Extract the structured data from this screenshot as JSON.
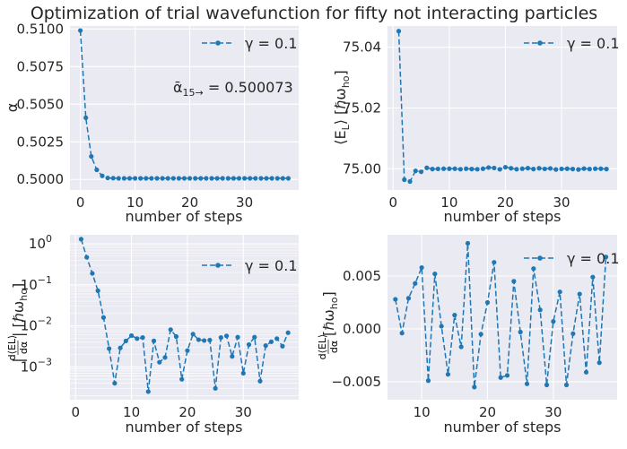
{
  "figure": {
    "title": "Optimization of trial wavefunction for fifty not interacting particles"
  },
  "colors": {
    "axes_bg": "#eaeaf2",
    "grid": "#ffffff",
    "line": "#1f77b4",
    "text": "#262626"
  },
  "chart_data": [
    {
      "type": "line",
      "id": "alpha",
      "xlabel": "number of steps",
      "ylabel": "α",
      "xlim": [
        -1.9,
        39.9
      ],
      "ylim": [
        0.4993,
        0.5102
      ],
      "xticks": [
        0,
        10,
        20,
        30
      ],
      "yticks": [
        0.5,
        0.5025,
        0.505,
        0.5075,
        0.51
      ],
      "ytick_labels": [
        "0.5000",
        "0.5025",
        "0.5050",
        "0.5075",
        "0.5100"
      ],
      "grid": true,
      "legend": "top-right",
      "annotation": {
        "base": "ᾱ",
        "sub": "15→",
        "rest": " = 0.500073"
      },
      "series": [
        {
          "name": "γ = 0.1",
          "style": "dashed-dot-markers",
          "x": [
            0,
            1,
            2,
            3,
            4,
            5,
            6,
            7,
            8,
            9,
            10,
            11,
            12,
            13,
            14,
            15,
            16,
            17,
            18,
            19,
            20,
            21,
            22,
            23,
            24,
            25,
            26,
            27,
            28,
            29,
            30,
            31,
            32,
            33,
            34,
            35,
            36,
            37,
            38
          ],
          "y": [
            0.5099,
            0.5041,
            0.50153,
            0.50064,
            0.50024,
            0.5001,
            0.500085,
            0.500075,
            0.500074,
            0.500073,
            0.500073,
            0.500073,
            0.500073,
            0.500073,
            0.500073,
            0.500073,
            0.500073,
            0.500073,
            0.500073,
            0.500073,
            0.500073,
            0.500073,
            0.500073,
            0.500073,
            0.500073,
            0.500073,
            0.500073,
            0.500073,
            0.500073,
            0.500073,
            0.500073,
            0.500073,
            0.500073,
            0.500073,
            0.500073,
            0.500073,
            0.500073,
            0.500073,
            0.500073
          ]
        }
      ]
    },
    {
      "type": "line",
      "id": "energy",
      "xlabel": "number of steps",
      "ylabel": "⟨E_L⟩ [ℏω_ho]",
      "ylabel_parts": {
        "open": "⟨E",
        "sub": "L",
        "mid": "⟩ [ℏω",
        "sub2": "ho",
        "close": "]"
      },
      "xlim": [
        -1.0,
        39.9
      ],
      "ylim": [
        74.993,
        75.047
      ],
      "xticks": [
        0,
        10,
        20,
        30
      ],
      "yticks": [
        75.0,
        75.02,
        75.04
      ],
      "ytick_labels": [
        "75.00",
        "75.02",
        "75.04"
      ],
      "grid": true,
      "legend": "top-right",
      "series": [
        {
          "name": "γ = 0.1",
          "style": "dashed-dot-markers",
          "x": [
            1,
            2,
            3,
            4,
            5,
            6,
            7,
            8,
            9,
            10,
            11,
            12,
            13,
            14,
            15,
            16,
            17,
            18,
            19,
            20,
            21,
            22,
            23,
            24,
            25,
            26,
            27,
            28,
            29,
            30,
            31,
            32,
            33,
            34,
            35,
            36,
            37,
            38
          ],
          "y": [
            75.0453,
            74.9964,
            74.9958,
            74.9993,
            74.999,
            75.0003,
            74.9999,
            74.99995,
            75.0,
            75.0,
            75.0,
            74.99985,
            75.0,
            74.9999,
            74.99985,
            75.0,
            75.0004,
            75.00025,
            74.9998,
            75.0005,
            75.00015,
            74.99985,
            75.0,
            75.0002,
            74.9999,
            75.00015,
            74.99995,
            75.0001,
            74.99975,
            74.99995,
            75.0,
            74.9999,
            74.99975,
            75.00005,
            74.9999,
            75.0,
            75.0,
            74.9999
          ]
        }
      ]
    },
    {
      "type": "line",
      "id": "grad-log",
      "scale": "log",
      "xlabel": "number of steps",
      "ylabel": "|d⟨E_L⟩/dα| [ℏω_ho]",
      "ylabel_parts": {
        "num": "d⟨EL⟩",
        "den": "dα",
        "rest": "| [ℏω",
        "sub": "ho",
        "close": "]"
      },
      "xlim": [
        -1.0,
        39.9
      ],
      "ylog_range": [
        -3.8,
        0.22
      ],
      "xticks": [
        0,
        10,
        20,
        30
      ],
      "yticks_exp": [
        0,
        -1,
        -2,
        -3
      ],
      "ytick_labels": [
        "10",
        "10",
        "10",
        "10"
      ],
      "ytick_exponents": [
        "0",
        "−1",
        "−2",
        "−3"
      ],
      "grid": true,
      "legend": "top-right",
      "series": [
        {
          "name": "γ = 0.1",
          "style": "dashed-dot-markers",
          "x": [
            1,
            2,
            3,
            4,
            5,
            6,
            7,
            8,
            9,
            10,
            11,
            12,
            13,
            14,
            15,
            16,
            17,
            18,
            19,
            20,
            21,
            22,
            23,
            24,
            25,
            26,
            27,
            28,
            29,
            30,
            31,
            32,
            33,
            34,
            35,
            36,
            37,
            38
          ],
          "y": [
            1.3,
            0.47,
            0.19,
            0.072,
            0.016,
            0.0028,
            0.0004,
            0.0029,
            0.0043,
            0.0058,
            0.0049,
            0.0052,
            0.00025,
            0.0043,
            0.0013,
            0.0017,
            0.0081,
            0.0055,
            0.0005,
            0.0025,
            0.0063,
            0.0046,
            0.0044,
            0.0045,
            0.0003,
            0.0052,
            0.0057,
            0.0018,
            0.0053,
            0.0007,
            0.0035,
            0.0053,
            0.00045,
            0.0033,
            0.0041,
            0.0049,
            0.0032,
            0.0068
          ]
        }
      ]
    },
    {
      "type": "line",
      "id": "grad-lin",
      "xlabel": "number of steps",
      "ylabel": "d⟨E_L⟩/dα [ℏω_ho]",
      "ylabel_parts": {
        "num": "d⟨EL⟩",
        "den": "dα",
        "rest": " [ℏω",
        "sub": "ho",
        "close": "]"
      },
      "xlim": [
        4.8,
        39.7
      ],
      "ylim": [
        -0.0067,
        0.0089
      ],
      "xticks": [
        10,
        20,
        30
      ],
      "yticks": [
        -0.005,
        0.0,
        0.005
      ],
      "ytick_labels": [
        "−0.005",
        "0.000",
        "0.005"
      ],
      "grid": true,
      "legend": "top-right",
      "series": [
        {
          "name": "γ = 0.1",
          "style": "dashed-dot-markers",
          "x": [
            6,
            7,
            8,
            9,
            10,
            11,
            12,
            13,
            14,
            15,
            16,
            17,
            18,
            19,
            20,
            21,
            22,
            23,
            24,
            25,
            26,
            27,
            28,
            29,
            30,
            31,
            32,
            33,
            34,
            35,
            36,
            37,
            38
          ],
          "y": [
            0.0028,
            -0.0004,
            0.0029,
            0.0043,
            0.0058,
            -0.0049,
            0.0052,
            0.00025,
            -0.0043,
            0.0013,
            -0.0017,
            0.0081,
            -0.0055,
            -0.0005,
            0.0025,
            0.0063,
            -0.0046,
            -0.0044,
            0.0045,
            -0.0003,
            -0.0052,
            0.0057,
            0.0018,
            -0.0053,
            0.0007,
            0.0035,
            -0.0053,
            -0.00045,
            0.0033,
            -0.0041,
            0.0049,
            -0.0032,
            0.0068
          ]
        }
      ]
    }
  ]
}
